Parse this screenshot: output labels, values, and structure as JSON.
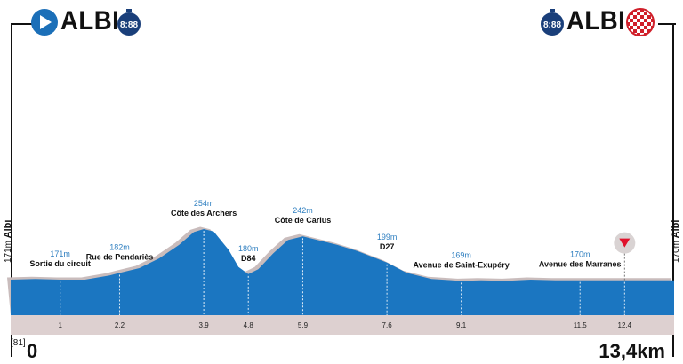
{
  "header": {
    "start_town": "ALBI",
    "finish_town": "ALBI",
    "start_clock": "8:88",
    "finish_clock": "8:88"
  },
  "side_labels": {
    "start": {
      "elevation": "171m",
      "name": "Albi"
    },
    "finish": {
      "elevation": "170m",
      "name": "Albi"
    }
  },
  "footer": {
    "start_km": "0",
    "total_distance": "13,4km",
    "ref_code": "[81]"
  },
  "chart_data": {
    "type": "area",
    "total_km": 13.4,
    "profile": [
      [
        0,
        171
      ],
      [
        0.5,
        172
      ],
      [
        1.0,
        171
      ],
      [
        1.5,
        171
      ],
      [
        2.0,
        178
      ],
      [
        2.2,
        182
      ],
      [
        2.6,
        190
      ],
      [
        3.0,
        206
      ],
      [
        3.4,
        228
      ],
      [
        3.7,
        249
      ],
      [
        3.9,
        254
      ],
      [
        4.1,
        250
      ],
      [
        4.4,
        220
      ],
      [
        4.6,
        192
      ],
      [
        4.8,
        180
      ],
      [
        5.0,
        188
      ],
      [
        5.3,
        214
      ],
      [
        5.6,
        236
      ],
      [
        5.9,
        242
      ],
      [
        6.2,
        236
      ],
      [
        6.6,
        228
      ],
      [
        7.0,
        218
      ],
      [
        7.6,
        199
      ],
      [
        8.0,
        182
      ],
      [
        8.5,
        172
      ],
      [
        9.1,
        169
      ],
      [
        9.5,
        170
      ],
      [
        10.0,
        169
      ],
      [
        10.5,
        171
      ],
      [
        11.0,
        170
      ],
      [
        11.5,
        170
      ],
      [
        12.0,
        170
      ],
      [
        12.4,
        170
      ],
      [
        13.0,
        170
      ],
      [
        13.4,
        170
      ]
    ],
    "points": [
      {
        "km": 1.0,
        "km_label": "1",
        "elevation": "171m",
        "name": "Sortie du circuit"
      },
      {
        "km": 2.2,
        "km_label": "2,2",
        "elevation": "182m",
        "name": "Rue de Pendariès"
      },
      {
        "km": 3.9,
        "km_label": "3,9",
        "elevation": "254m",
        "name": "Côte des Archers"
      },
      {
        "km": 4.8,
        "km_label": "4,8",
        "elevation": "180m",
        "name": "D84"
      },
      {
        "km": 5.9,
        "km_label": "5,9",
        "elevation": "242m",
        "name": "Côte de Carlus"
      },
      {
        "km": 7.6,
        "km_label": "7,6",
        "elevation": "199m",
        "name": "D27"
      },
      {
        "km": 9.1,
        "km_label": "9,1",
        "elevation": "169m",
        "name": "Avenue de Saint-Exupéry"
      },
      {
        "km": 11.5,
        "km_label": "11,5",
        "elevation": "170m",
        "name": "Avenue des Marranes"
      }
    ],
    "marker": {
      "km": 12.4,
      "km_label": "12,4",
      "type": "red-triangle-down"
    },
    "colors": {
      "profile_fill": "#1b76c1",
      "road_band": "#ddd0d0",
      "shadow": "#c9bcbc",
      "elevation_label": "#2f7fc0",
      "start_icon": "#1b6fb8",
      "finish_checker": "#d01f2a"
    }
  }
}
